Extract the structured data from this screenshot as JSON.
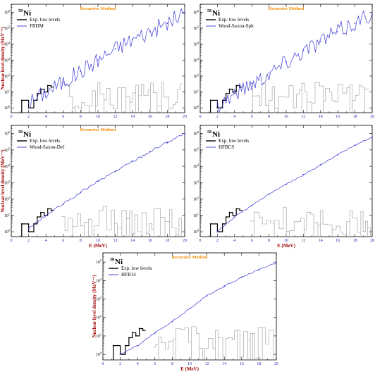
{
  "chart_data": [
    {
      "type": "line",
      "title": "Recursive Method",
      "nucleus_mass": "58",
      "nucleus_symbol": "Ni",
      "xlabel": "",
      "ylabel": "Nuclear level density (MeV⁻¹)",
      "xlim": [
        0,
        20
      ],
      "ylim_log10": [
        -0.3,
        6.5
      ],
      "log_y": true,
      "legend_position": "top-left",
      "x_ticks": [
        "0",
        "2",
        "4",
        "6",
        "8",
        "10",
        "12",
        "14",
        "16",
        "18",
        "20"
      ],
      "series": [
        {
          "name": "Exp. low levels",
          "color": "#000000",
          "x": [
            1.2,
            2.0,
            2.6,
            3.0,
            3.4,
            3.8,
            4.2,
            4.6
          ],
          "y": [
            3,
            1,
            3,
            8,
            15,
            10,
            25,
            20
          ]
        },
        {
          "name": "FRDM",
          "color": "#3a3ad6",
          "x": [
            2.0,
            4.0,
            6.0,
            8.0,
            10.0,
            12.0,
            14.0,
            16.0,
            18.0,
            20.0
          ],
          "y": [
            2,
            10,
            40,
            200,
            1000,
            5000,
            20000,
            60000,
            200000,
            900000
          ]
        }
      ]
    },
    {
      "type": "line",
      "title": "Recursive Method",
      "nucleus_mass": "58",
      "nucleus_symbol": "Ni",
      "xlabel": "",
      "ylabel": "",
      "xlim": [
        0,
        20
      ],
      "ylim_log10": [
        -0.3,
        6.5
      ],
      "log_y": true,
      "legend_position": "top-left",
      "x_ticks": [
        "0",
        "2",
        "4",
        "6",
        "8",
        "10",
        "12",
        "14",
        "16",
        "18",
        "20"
      ],
      "series": [
        {
          "name": "Exp. low levels",
          "color": "#000000",
          "x": [
            1.2,
            2.0,
            2.6,
            3.0,
            3.4,
            3.8,
            4.2,
            4.6
          ],
          "y": [
            3,
            1,
            3,
            8,
            15,
            10,
            25,
            20
          ]
        },
        {
          "name": "Wood-Saxon-Sph",
          "color": "#3a3ad6",
          "x": [
            2.0,
            4.0,
            6.0,
            8.0,
            10.0,
            12.0,
            14.0,
            16.0,
            18.0,
            20.0
          ],
          "y": [
            1.5,
            8,
            35,
            150,
            800,
            4000,
            15000,
            60000,
            200000,
            900000
          ]
        }
      ]
    },
    {
      "type": "line",
      "title": "Recursive Method",
      "nucleus_mass": "58",
      "nucleus_symbol": "Ni",
      "xlabel": "E (MeV)",
      "ylabel": "Nuclear level density (MeV⁻¹)",
      "xlim": [
        0,
        20
      ],
      "ylim_log10": [
        -0.3,
        6.5
      ],
      "log_y": true,
      "legend_position": "top-left",
      "x_ticks": [
        "0",
        "2",
        "4",
        "6",
        "8",
        "10",
        "12",
        "14",
        "16",
        "18",
        "20"
      ],
      "series": [
        {
          "name": "Exp. low levels",
          "color": "#000000",
          "x": [
            1.2,
            2.0,
            2.6,
            3.0,
            3.4,
            3.8,
            4.2,
            4.6
          ],
          "y": [
            3,
            1,
            3,
            8,
            15,
            10,
            25,
            20
          ]
        },
        {
          "name": "Wood-Saxon-Def",
          "color": "#3a3ad6",
          "x": [
            2.0,
            4.0,
            6.0,
            8.0,
            10.0,
            12.0,
            14.0,
            16.0,
            18.0,
            20.0
          ],
          "y": [
            1.5,
            10,
            50,
            250,
            1200,
            5000,
            20000,
            80000,
            300000,
            1000000
          ]
        }
      ]
    },
    {
      "type": "line",
      "title": "",
      "nucleus_mass": "58",
      "nucleus_symbol": "Ni",
      "xlabel": "E (MeV)",
      "ylabel": "",
      "xlim": [
        0,
        20
      ],
      "ylim_log10": [
        -0.3,
        6.5
      ],
      "log_y": true,
      "legend_position": "top-left",
      "x_ticks": [
        "0",
        "2",
        "4",
        "6",
        "8",
        "10",
        "12",
        "14",
        "16",
        "18",
        "20"
      ],
      "series": [
        {
          "name": "Exp. low levels",
          "color": "#000000",
          "x": [
            1.2,
            2.0,
            2.6,
            3.0,
            3.4,
            3.8,
            4.2,
            4.6
          ],
          "y": [
            3,
            1,
            3,
            8,
            15,
            10,
            25,
            20
          ]
        },
        {
          "name": "HFBCS",
          "color": "#3a3ad6",
          "x": [
            2.0,
            4.0,
            6.0,
            8.0,
            10.0,
            12.0,
            14.0,
            16.0,
            18.0,
            20.0
          ],
          "y": [
            1,
            8,
            40,
            200,
            800,
            3000,
            12000,
            50000,
            200000,
            600000
          ]
        }
      ]
    },
    {
      "type": "line",
      "title": "Recursive Method",
      "nucleus_mass": "58",
      "nucleus_symbol": "Ni",
      "xlabel": "E (MeV)",
      "ylabel": "Nuclear level density (MeV⁻¹)",
      "xlim": [
        0,
        20
      ],
      "ylim_log10": [
        -0.3,
        5.5
      ],
      "log_y": true,
      "legend_position": "top-left",
      "x_ticks": [
        "0",
        "2",
        "4",
        "6",
        "8",
        "10",
        "12",
        "14",
        "16",
        "18",
        "20"
      ],
      "series": [
        {
          "name": "Exp. low levels",
          "color": "#000000",
          "x": [
            1.2,
            2.0,
            2.6,
            3.0,
            3.4,
            3.8,
            4.2,
            4.6
          ],
          "y": [
            3,
            1,
            3,
            8,
            15,
            10,
            25,
            20
          ]
        },
        {
          "name": "HFB14",
          "color": "#3a3ad6",
          "x": [
            2.0,
            4.0,
            6.0,
            8.0,
            10.0,
            12.0,
            14.0,
            16.0,
            18.0,
            20.0
          ],
          "y": [
            1,
            3,
            15,
            60,
            300,
            1500,
            5000,
            15000,
            40000,
            90000
          ]
        }
      ]
    }
  ]
}
